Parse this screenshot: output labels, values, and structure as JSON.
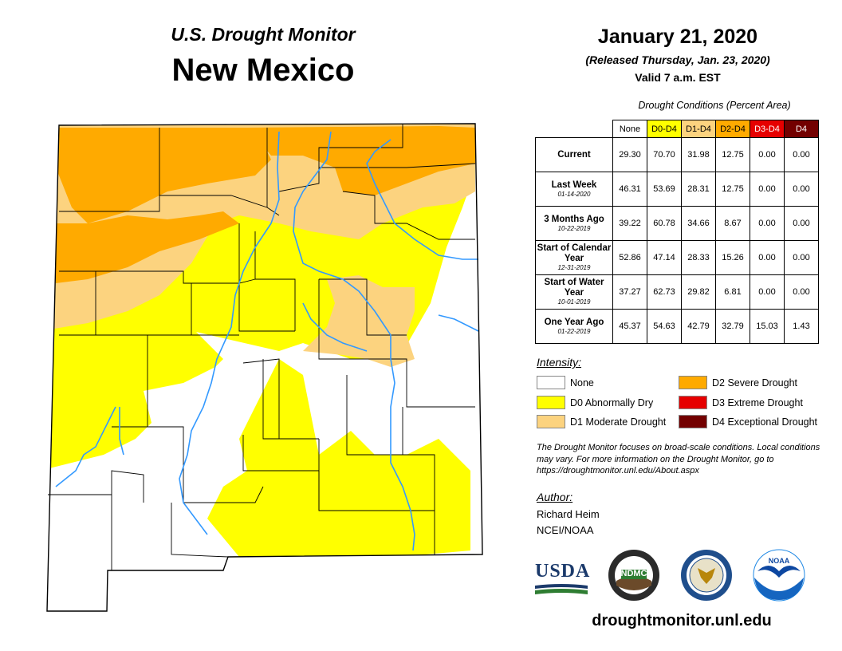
{
  "header": {
    "subtitle": "U.S. Drought Monitor",
    "state": "New Mexico",
    "date": "January 21, 2020",
    "released": "(Released Thursday, Jan. 23, 2020)",
    "valid": "Valid 7 a.m. EST"
  },
  "table": {
    "caption": "Drought Conditions (Percent Area)",
    "columns": [
      "None",
      "D0-D4",
      "D1-D4",
      "D2-D4",
      "D3-D4",
      "D4"
    ],
    "column_colors": [
      "#ffffff",
      "#ffff00",
      "#fcd37f",
      "#ffaa00",
      "#e60000",
      "#730000"
    ],
    "rows": [
      {
        "label": "Current",
        "date": "",
        "values": [
          "29.30",
          "70.70",
          "31.98",
          "12.75",
          "0.00",
          "0.00"
        ]
      },
      {
        "label": "Last Week",
        "date": "01-14-2020",
        "values": [
          "46.31",
          "53.69",
          "28.31",
          "12.75",
          "0.00",
          "0.00"
        ]
      },
      {
        "label": "3 Months Ago",
        "date": "10-22-2019",
        "values": [
          "39.22",
          "60.78",
          "34.66",
          "8.67",
          "0.00",
          "0.00"
        ]
      },
      {
        "label": "Start of Calendar Year",
        "date": "12-31-2019",
        "values": [
          "52.86",
          "47.14",
          "28.33",
          "15.26",
          "0.00",
          "0.00"
        ]
      },
      {
        "label": "Start of Water Year",
        "date": "10-01-2019",
        "values": [
          "37.27",
          "62.73",
          "29.82",
          "6.81",
          "0.00",
          "0.00"
        ]
      },
      {
        "label": "One Year Ago",
        "date": "01-22-2019",
        "values": [
          "45.37",
          "54.63",
          "42.79",
          "32.79",
          "15.03",
          "1.43"
        ]
      }
    ]
  },
  "legend": {
    "title": "Intensity:",
    "items": [
      {
        "label": "None",
        "color": "#ffffff"
      },
      {
        "label": "D0 Abnormally Dry",
        "color": "#ffff00"
      },
      {
        "label": "D1 Moderate Drought",
        "color": "#fcd37f"
      },
      {
        "label": "D2 Severe Drought",
        "color": "#ffaa00"
      },
      {
        "label": "D3 Extreme Drought",
        "color": "#e60000"
      },
      {
        "label": "D4 Exceptional Drought",
        "color": "#730000"
      }
    ]
  },
  "note": "The Drought Monitor focuses on broad-scale conditions. Local conditions may vary. For more information on the Drought Monitor, go to https://droughtmonitor.unl.edu/About.aspx",
  "author": {
    "heading": "Author:",
    "name": "Richard Heim",
    "org": "NCEI/NOAA"
  },
  "logos": {
    "usda": "USDA",
    "ndmc": "NDMC",
    "noaa": "NOAA"
  },
  "url": "droughtmonitor.unl.edu",
  "map_colors": {
    "none": "#ffffff",
    "d0": "#ffff00",
    "d1": "#fcd37f",
    "d2": "#ffaa00",
    "rivers": "#3399ff",
    "counties": "#000000"
  }
}
